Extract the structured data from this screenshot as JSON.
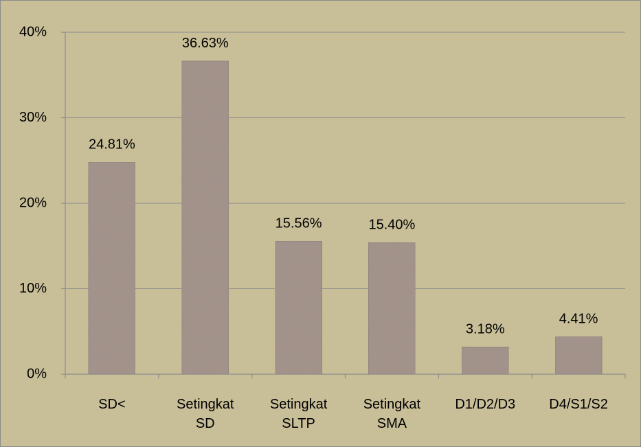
{
  "chart_data": {
    "type": "bar",
    "categories": [
      "SD<",
      "Setingkat SD",
      "Setingkat SLTP",
      "Setingkat SMA",
      "D1/D2/D3",
      "D4/S1/S2"
    ],
    "values": [
      24.81,
      36.63,
      15.56,
      15.4,
      3.18,
      4.41
    ],
    "value_labels": [
      "24.81%",
      "36.63%",
      "15.56%",
      "15.40%",
      "3.18%",
      "4.41%"
    ],
    "color": "#a39289",
    "ylim": [
      0,
      40
    ],
    "yticks": [
      {
        "value": 0,
        "label": "0%"
      },
      {
        "value": 10,
        "label": "10%"
      },
      {
        "value": 20,
        "label": "20%"
      },
      {
        "value": 30,
        "label": "30%"
      },
      {
        "value": 40,
        "label": "40%"
      }
    ],
    "grid": true
  }
}
